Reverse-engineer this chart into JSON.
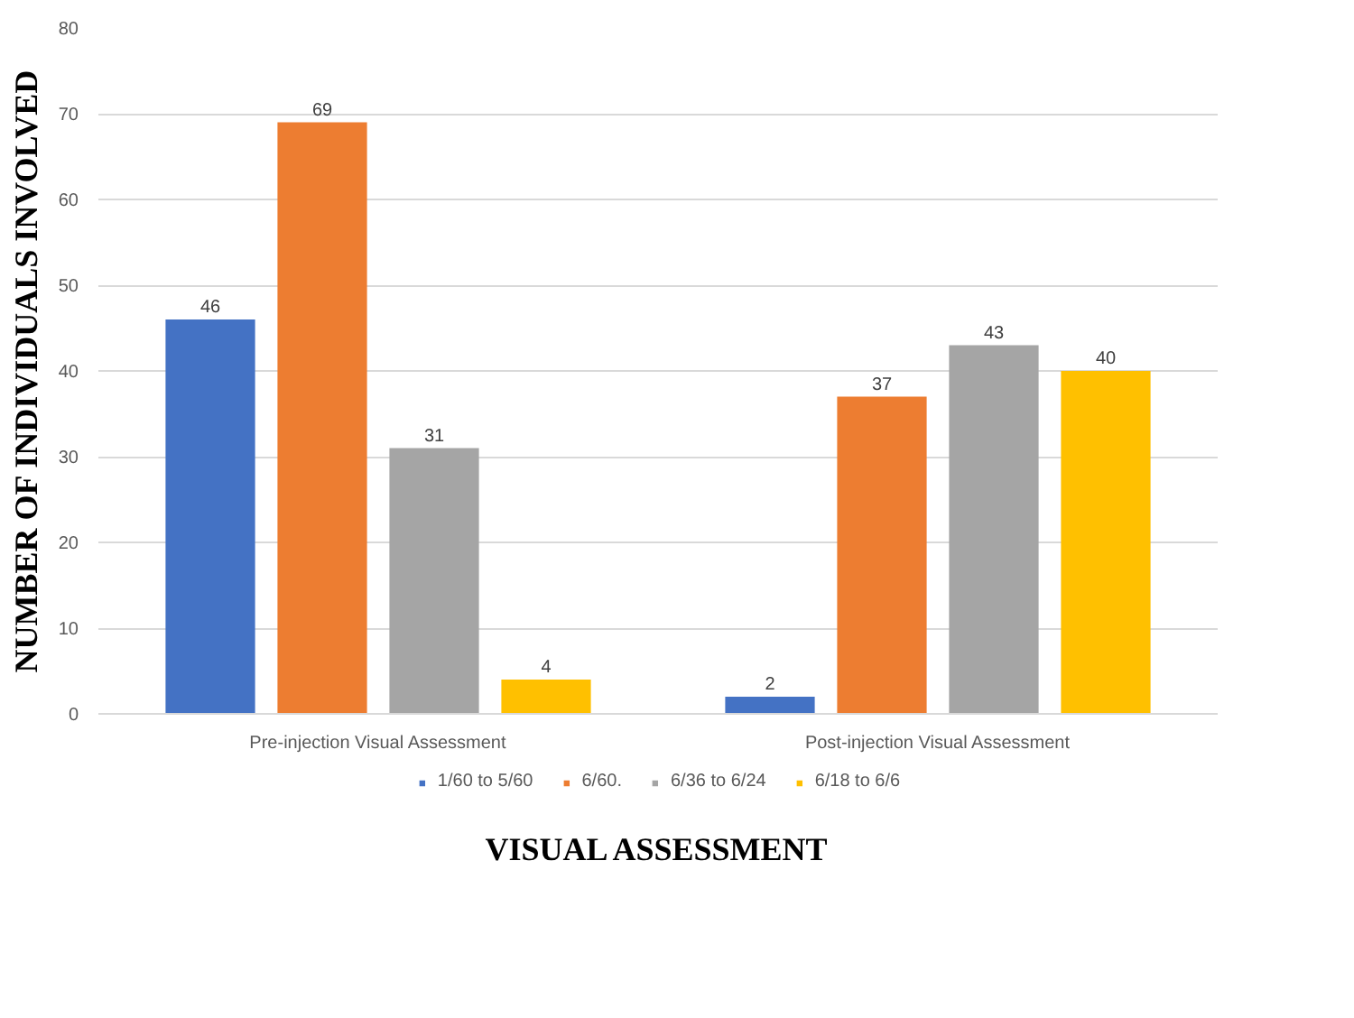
{
  "chart_data": {
    "type": "bar",
    "xlabel": "VISUAL ASSESSMENT",
    "ylabel": "NUMBER OF INDIVIDUALS INVOLVED",
    "categories": [
      "Pre-injection Visual Assessment",
      "Post-injection Visual Assessment"
    ],
    "series": [
      {
        "name": "1/60 to 5/60",
        "color": "#4472c4",
        "values": [
          46,
          2
        ]
      },
      {
        "name": "6/60.",
        "color": "#ed7d31",
        "values": [
          69,
          37
        ]
      },
      {
        "name": "6/36 to 6/24",
        "color": "#a5a5a5",
        "values": [
          31,
          43
        ]
      },
      {
        "name": "6/18 to 6/6",
        "color": "#ffc000",
        "values": [
          4,
          40
        ]
      }
    ],
    "ylim": [
      0,
      80
    ],
    "yticks": [
      0,
      10,
      20,
      30,
      40,
      50,
      60,
      70,
      80
    ],
    "grid": "y",
    "legend": "bottom",
    "data_labels": true
  }
}
